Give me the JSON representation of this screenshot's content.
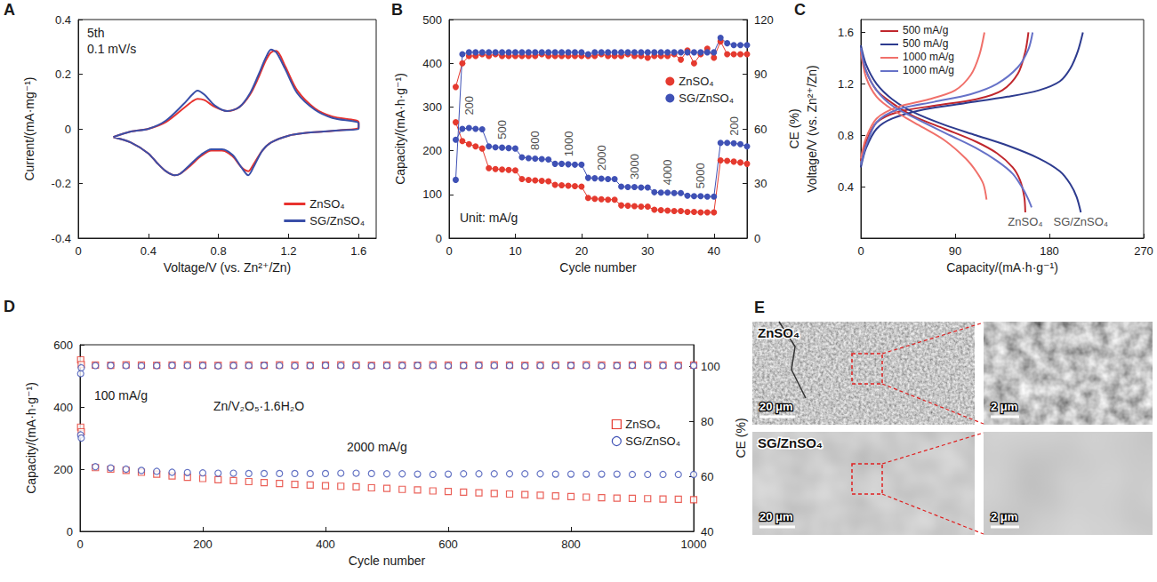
{
  "chart_data": [
    {
      "panel": "A",
      "type": "line",
      "line_style": "solid",
      "x_label": "Voltage/V (vs. Zn²⁺/Zn)",
      "y_label": "Current/(mA·mg⁻¹)",
      "annotations": [
        "5th",
        "0.1 mV/s"
      ],
      "xlim": [
        0,
        1.7
      ],
      "xticks": [
        0,
        0.4,
        0.8,
        1.2,
        1.6
      ],
      "ylim": [
        -0.4,
        0.4
      ],
      "yticks": [
        -0.4,
        -0.2,
        0,
        0.2,
        0.4
      ],
      "legend": "lower right",
      "series": [
        {
          "name": "ZnSO₄",
          "color": "#e8322e",
          "marker": "none",
          "x": [
            0.2,
            0.3,
            0.4,
            0.5,
            0.6,
            0.65,
            0.68,
            0.72,
            0.78,
            0.85,
            0.92,
            0.98,
            1.03,
            1.07,
            1.1,
            1.13,
            1.18,
            1.25,
            1.35,
            1.45,
            1.6,
            1.6,
            1.5,
            1.4,
            1.3,
            1.2,
            1.1,
            1.05,
            1.0,
            0.97,
            0.93,
            0.88,
            0.82,
            0.76,
            0.7,
            0.64,
            0.58,
            0.55,
            0.5,
            0.45,
            0.4,
            0.3,
            0.2
          ],
          "values": [
            -0.03,
            -0.01,
            0,
            0.025,
            0.075,
            0.1,
            0.11,
            0.105,
            0.08,
            0.065,
            0.08,
            0.125,
            0.19,
            0.25,
            0.28,
            0.285,
            0.23,
            0.14,
            0.075,
            0.045,
            0.025,
            0.005,
            -0.005,
            -0.01,
            -0.015,
            -0.025,
            -0.05,
            -0.08,
            -0.13,
            -0.155,
            -0.14,
            -0.1,
            -0.08,
            -0.08,
            -0.1,
            -0.135,
            -0.165,
            -0.17,
            -0.155,
            -0.125,
            -0.09,
            -0.05,
            -0.03
          ]
        },
        {
          "name": "SG/ZnSO₄",
          "color": "#3a4fa8",
          "marker": "none",
          "x": [
            0.2,
            0.3,
            0.4,
            0.5,
            0.6,
            0.65,
            0.68,
            0.72,
            0.78,
            0.85,
            0.92,
            0.98,
            1.03,
            1.07,
            1.1,
            1.13,
            1.18,
            1.25,
            1.35,
            1.45,
            1.6,
            1.6,
            1.5,
            1.4,
            1.3,
            1.2,
            1.1,
            1.05,
            1.0,
            0.97,
            0.93,
            0.88,
            0.82,
            0.76,
            0.7,
            0.64,
            0.58,
            0.55,
            0.5,
            0.45,
            0.4,
            0.3,
            0.2
          ],
          "values": [
            -0.03,
            -0.01,
            0,
            0.03,
            0.09,
            0.125,
            0.14,
            0.125,
            0.085,
            0.065,
            0.08,
            0.13,
            0.2,
            0.26,
            0.29,
            0.28,
            0.22,
            0.13,
            0.07,
            0.04,
            0.02,
            0,
            -0.005,
            -0.01,
            -0.015,
            -0.025,
            -0.05,
            -0.08,
            -0.14,
            -0.17,
            -0.14,
            -0.095,
            -0.075,
            -0.075,
            -0.095,
            -0.13,
            -0.165,
            -0.17,
            -0.155,
            -0.125,
            -0.09,
            -0.05,
            -0.03
          ]
        }
      ]
    },
    {
      "panel": "B",
      "type": "line",
      "line_style": "solid",
      "x_label": "Cycle number",
      "y_label": "Capacity/(mA·h·g⁻¹)",
      "y2_label": "CE (%)",
      "annotations": [
        "Unit: mA/g"
      ],
      "rate_labels": [
        "200",
        "500",
        "800",
        "1000",
        "2000",
        "3000",
        "4000",
        "5000",
        "200"
      ],
      "xlim": [
        0,
        45
      ],
      "xticks": [
        0,
        10,
        20,
        30,
        40
      ],
      "ylim": [
        0,
        500
      ],
      "yticks": [
        0,
        100,
        200,
        300,
        400,
        500
      ],
      "y2lim": [
        0,
        120
      ],
      "y2ticks": [
        0,
        30,
        60,
        90,
        120
      ],
      "legend": "upper right",
      "x": [
        1,
        2,
        3,
        4,
        5,
        6,
        7,
        8,
        9,
        10,
        11,
        12,
        13,
        14,
        15,
        16,
        17,
        18,
        19,
        20,
        21,
        22,
        23,
        24,
        25,
        26,
        27,
        28,
        29,
        30,
        31,
        32,
        33,
        34,
        35,
        36,
        37,
        38,
        39,
        40,
        41,
        42,
        43,
        44,
        45
      ],
      "series": [
        {
          "name": "ZnSO₄",
          "color": "#e53a2f",
          "marker": "circle",
          "values": [
            265,
            222,
            215,
            210,
            205,
            160,
            158,
            157,
            156,
            155,
            135,
            133,
            132,
            131,
            130,
            122,
            121,
            120,
            119,
            118,
            92,
            90,
            89,
            88,
            88,
            75,
            74,
            73,
            72,
            72,
            65,
            64,
            63,
            62,
            62,
            60,
            60,
            59,
            59,
            59,
            178,
            177,
            175,
            173,
            170
          ]
        },
        {
          "name": "SG/ZnSO₄",
          "color": "#3f51b5",
          "marker": "circle",
          "values": [
            225,
            250,
            252,
            250,
            249,
            210,
            208,
            207,
            206,
            205,
            185,
            183,
            182,
            181,
            180,
            170,
            170,
            169,
            168,
            168,
            138,
            137,
            136,
            135,
            135,
            118,
            117,
            117,
            116,
            116,
            105,
            104,
            104,
            103,
            103,
            97,
            96,
            96,
            95,
            95,
            218,
            218,
            217,
            215,
            210
          ]
        },
        {
          "name": "ZnSO₄",
          "color": "#e53a2f",
          "marker": "circle",
          "axis": "y2",
          "values": [
            83,
            96,
            100,
            100,
            101,
            100,
            101,
            100,
            100,
            100,
            100,
            100,
            100,
            101,
            100,
            100,
            100,
            100,
            100,
            100,
            100,
            100,
            101,
            100,
            100,
            100,
            101,
            100,
            100,
            99,
            100,
            100,
            100,
            101,
            98,
            103,
            96,
            101,
            104,
            99,
            108,
            101,
            101,
            101,
            101
          ]
        },
        {
          "name": "SG/ZnSO₄",
          "color": "#3f51b5",
          "marker": "circle",
          "axis": "y2",
          "values": [
            32,
            101,
            102,
            102,
            102,
            102,
            102,
            102,
            102,
            102,
            102,
            102,
            102,
            102,
            102,
            102,
            102,
            102,
            102,
            102,
            101,
            102,
            102,
            102,
            102,
            102,
            102,
            102,
            102,
            102,
            102,
            102,
            102,
            102,
            102,
            102,
            102,
            102,
            102,
            102,
            110,
            107,
            106,
            106,
            106
          ]
        }
      ]
    },
    {
      "panel": "C",
      "type": "line",
      "line_style": "solid",
      "x_label": "Capacity/(mA·h·g⁻¹)",
      "y_label": "Voltage/V (vs. Zn²⁺/Zn)",
      "xlim": [
        0,
        270
      ],
      "xticks": [
        0,
        90,
        180,
        270
      ],
      "ylim": [
        0,
        1.7
      ],
      "yticks": [
        0.4,
        0.8,
        1.2,
        1.6
      ],
      "legend": "upper left",
      "series": [
        {
          "name": "500 mA/g",
          "color": "#c0272d",
          "marker": "none",
          "label": "ZnSO₄",
          "discharge": {
            "x": [
              0,
              5,
              15,
              30,
              50,
              80,
              110,
              130,
              145,
              152,
              156,
              157
            ],
            "values": [
              1.45,
              1.3,
              1.15,
              1.05,
              0.95,
              0.85,
              0.75,
              0.66,
              0.55,
              0.45,
              0.32,
              0.2
            ]
          },
          "charge": {
            "x": [
              0,
              5,
              15,
              35,
              70,
              110,
              135,
              150,
              157,
              160
            ],
            "values": [
              0.6,
              0.75,
              0.9,
              0.98,
              1.03,
              1.08,
              1.15,
              1.28,
              1.45,
              1.6
            ]
          }
        },
        {
          "name": "500 mA/g",
          "color": "#2d3b8f",
          "marker": "none",
          "label": "SG/ZnSO₄",
          "discharge": {
            "x": [
              0,
              5,
              15,
              30,
              50,
              80,
              110,
              140,
              170,
              190,
              200,
              206,
              210
            ],
            "values": [
              1.5,
              1.35,
              1.2,
              1.08,
              0.98,
              0.88,
              0.8,
              0.72,
              0.62,
              0.52,
              0.42,
              0.32,
              0.2
            ]
          },
          "charge": {
            "x": [
              0,
              5,
              15,
              30,
              60,
              100,
              140,
              170,
              190,
              200,
              207,
              212
            ],
            "values": [
              0.55,
              0.7,
              0.85,
              0.93,
              1.0,
              1.05,
              1.1,
              1.15,
              1.22,
              1.32,
              1.45,
              1.6
            ]
          }
        },
        {
          "name": "1000 mA/g",
          "color": "#f0706a",
          "marker": "none",
          "discharge": {
            "x": [
              0,
              5,
              15,
              30,
              55,
              80,
              100,
              110,
              117,
              120
            ],
            "values": [
              1.45,
              1.25,
              1.1,
              1.0,
              0.88,
              0.76,
              0.62,
              0.52,
              0.42,
              0.3
            ]
          },
          "charge": {
            "x": [
              0,
              5,
              15,
              35,
              65,
              90,
              105,
              113,
              118
            ],
            "values": [
              0.62,
              0.78,
              0.93,
              1.02,
              1.08,
              1.15,
              1.27,
              1.42,
              1.6
            ]
          }
        },
        {
          "name": "1000 mA/g",
          "color": "#6672c8",
          "marker": "none",
          "discharge": {
            "x": [
              0,
              5,
              15,
              30,
              55,
              85,
              110,
              130,
              145,
              155,
              160,
              163
            ],
            "values": [
              1.48,
              1.3,
              1.15,
              1.03,
              0.92,
              0.8,
              0.7,
              0.6,
              0.5,
              0.38,
              0.3,
              0.24
            ]
          },
          "charge": {
            "x": [
              0,
              5,
              15,
              35,
              70,
              105,
              130,
              150,
              160,
              164
            ],
            "values": [
              0.57,
              0.72,
              0.9,
              1.0,
              1.06,
              1.12,
              1.2,
              1.33,
              1.47,
              1.6
            ]
          }
        }
      ]
    },
    {
      "panel": "D",
      "type": "scatter",
      "x_label": "Cycle number",
      "y_label": "Capacity/(mA·h·g⁻¹)",
      "y2_label": "CE (%)",
      "annotations": [
        "Zn/V₂O₅·1.6H₂O",
        "100 mA/g",
        "2000 mA/g"
      ],
      "xlim": [
        0,
        1000
      ],
      "xticks": [
        0,
        200,
        400,
        600,
        800,
        1000
      ],
      "ylim": [
        0,
        600
      ],
      "yticks": [
        0,
        200,
        400,
        600
      ],
      "y2lim": [
        40,
        108
      ],
      "y2ticks": [
        40,
        60,
        80,
        100
      ],
      "legend": "right",
      "x": [
        1,
        2,
        25,
        50,
        75,
        100,
        125,
        150,
        175,
        200,
        225,
        250,
        275,
        300,
        325,
        350,
        375,
        400,
        425,
        450,
        475,
        500,
        525,
        550,
        575,
        600,
        625,
        650,
        675,
        700,
        725,
        750,
        775,
        800,
        825,
        850,
        875,
        900,
        925,
        950,
        975,
        1000
      ],
      "series": [
        {
          "name": "ZnSO₄",
          "color": "#e53a2f",
          "marker": "open square",
          "values": [
            335,
            320,
            205,
            200,
            196,
            190,
            184,
            178,
            174,
            170,
            166,
            163,
            160,
            157,
            154,
            151,
            149,
            147,
            145,
            143,
            140,
            138,
            135,
            133,
            130,
            128,
            126,
            124,
            122,
            120,
            118,
            116,
            114,
            112,
            110,
            108,
            107,
            106,
            105,
            104,
            103,
            102
          ]
        },
        {
          "name": "SG/ZnSO₄",
          "color": "#3f51b5",
          "marker": "open circle",
          "values": [
            310,
            300,
            208,
            204,
            200,
            196,
            193,
            190,
            189,
            188,
            187,
            187,
            186,
            186,
            186,
            186,
            186,
            186,
            187,
            187,
            186,
            185,
            185,
            184,
            183,
            184,
            185,
            185,
            185,
            185,
            185,
            185,
            184,
            184,
            184,
            184,
            184,
            183,
            183,
            183,
            183,
            183
          ]
        },
        {
          "name": "ZnSO₄",
          "color": "#e53a2f",
          "marker": "open square",
          "axis": "y2",
          "values": [
            102.5,
            100.8,
            100.6,
            100.5,
            100.7,
            100.6,
            100.5,
            100.6,
            100.7,
            100.6,
            100.5,
            100.6,
            100.6,
            100.5,
            100.7,
            100.6,
            100.5,
            100.6,
            100.7,
            100.6,
            100.5,
            100.6,
            100.6,
            100.5,
            100.7,
            100.6,
            100.5,
            100.6,
            100.7,
            100.6,
            100.5,
            100.6,
            100.6,
            100.5,
            100.7,
            100.6,
            100.5,
            100.6,
            100.7,
            100.6,
            100.5,
            100.6
          ]
        },
        {
          "name": "SG/ZnSO₄",
          "color": "#3f51b5",
          "marker": "open circle",
          "axis": "y2",
          "values": [
            97.5,
            99.6,
            100.4,
            100.5,
            100.4,
            100.3,
            100.4,
            100.5,
            100.4,
            100.4,
            100.3,
            100.4,
            100.4,
            100.5,
            100.4,
            100.3,
            100.4,
            100.5,
            100.4,
            100.4,
            100.3,
            100.4,
            100.4,
            100.5,
            100.4,
            100.3,
            100.4,
            100.5,
            100.4,
            100.4,
            100.3,
            100.4,
            100.4,
            100.5,
            100.4,
            100.3,
            100.4,
            100.5,
            100.4,
            100.4,
            100.3,
            100.4
          ]
        }
      ]
    }
  ],
  "images": {
    "panel": "E",
    "rows": [
      {
        "label": "ZnSO₄",
        "scale_bars": [
          "20 μm",
          "2 μm"
        ]
      },
      {
        "label": "SG/ZnSO₄",
        "scale_bars": [
          "20 μm",
          "2 μm"
        ]
      }
    ]
  }
}
